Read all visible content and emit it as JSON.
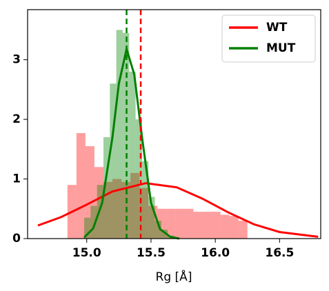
{
  "chart_data": {
    "type": "histogram",
    "xlabel": "Rg [Å]",
    "xlim": [
      14.54,
      16.82
    ],
    "ylim": [
      0,
      3.84
    ],
    "xticks": [
      {
        "value": 15,
        "label": "15.0"
      },
      15.5,
      {
        "value": 16,
        "label": "16.0"
      },
      16.5
    ],
    "yticks": [
      0,
      1,
      2,
      3
    ],
    "legend": "upper right",
    "series": [
      {
        "name": "WT",
        "color": "#ff0000",
        "bins": [
          14.85,
          14.92,
          14.99,
          15.06,
          15.13,
          15.2,
          15.27,
          15.34,
          15.41,
          15.48,
          15.55,
          15.62,
          15.69,
          15.76,
          15.83,
          15.9,
          15.97,
          16.04,
          16.11,
          16.18,
          16.25
        ],
        "values": [
          0.9,
          1.77,
          1.55,
          1.2,
          0.95,
          1.0,
          0.95,
          1.1,
          0.85,
          0.55,
          0.5,
          0.5,
          0.5,
          0.5,
          0.45,
          0.45,
          0.45,
          0.4,
          0.38,
          0.3
        ],
        "curve_x": [
          14.62,
          14.8,
          15.0,
          15.2,
          15.46,
          15.7,
          15.9,
          16.1,
          16.3,
          16.5,
          16.8
        ],
        "curve_y": [
          0.22,
          0.36,
          0.57,
          0.79,
          0.93,
          0.86,
          0.67,
          0.44,
          0.24,
          0.11,
          0.03
        ],
        "mean_line": 15.42
      },
      {
        "name": "MUT",
        "color": "#008000",
        "bins": [
          14.98,
          15.03,
          15.08,
          15.13,
          15.18,
          15.23,
          15.28,
          15.33,
          15.38,
          15.43,
          15.48,
          15.53,
          15.58,
          15.63,
          15.68
        ],
        "values": [
          0.35,
          0.55,
          0.9,
          1.7,
          2.6,
          3.5,
          3.45,
          2.8,
          2.0,
          1.3,
          0.7,
          0.3,
          0.15,
          0.05
        ],
        "curve_x": [
          14.98,
          15.05,
          15.12,
          15.2,
          15.25,
          15.31,
          15.37,
          15.43,
          15.5,
          15.57,
          15.65,
          15.72
        ],
        "curve_y": [
          0.02,
          0.17,
          0.6,
          1.7,
          2.6,
          3.18,
          2.75,
          1.7,
          0.6,
          0.16,
          0.03,
          0.0
        ],
        "mean_line": 15.31
      }
    ]
  }
}
